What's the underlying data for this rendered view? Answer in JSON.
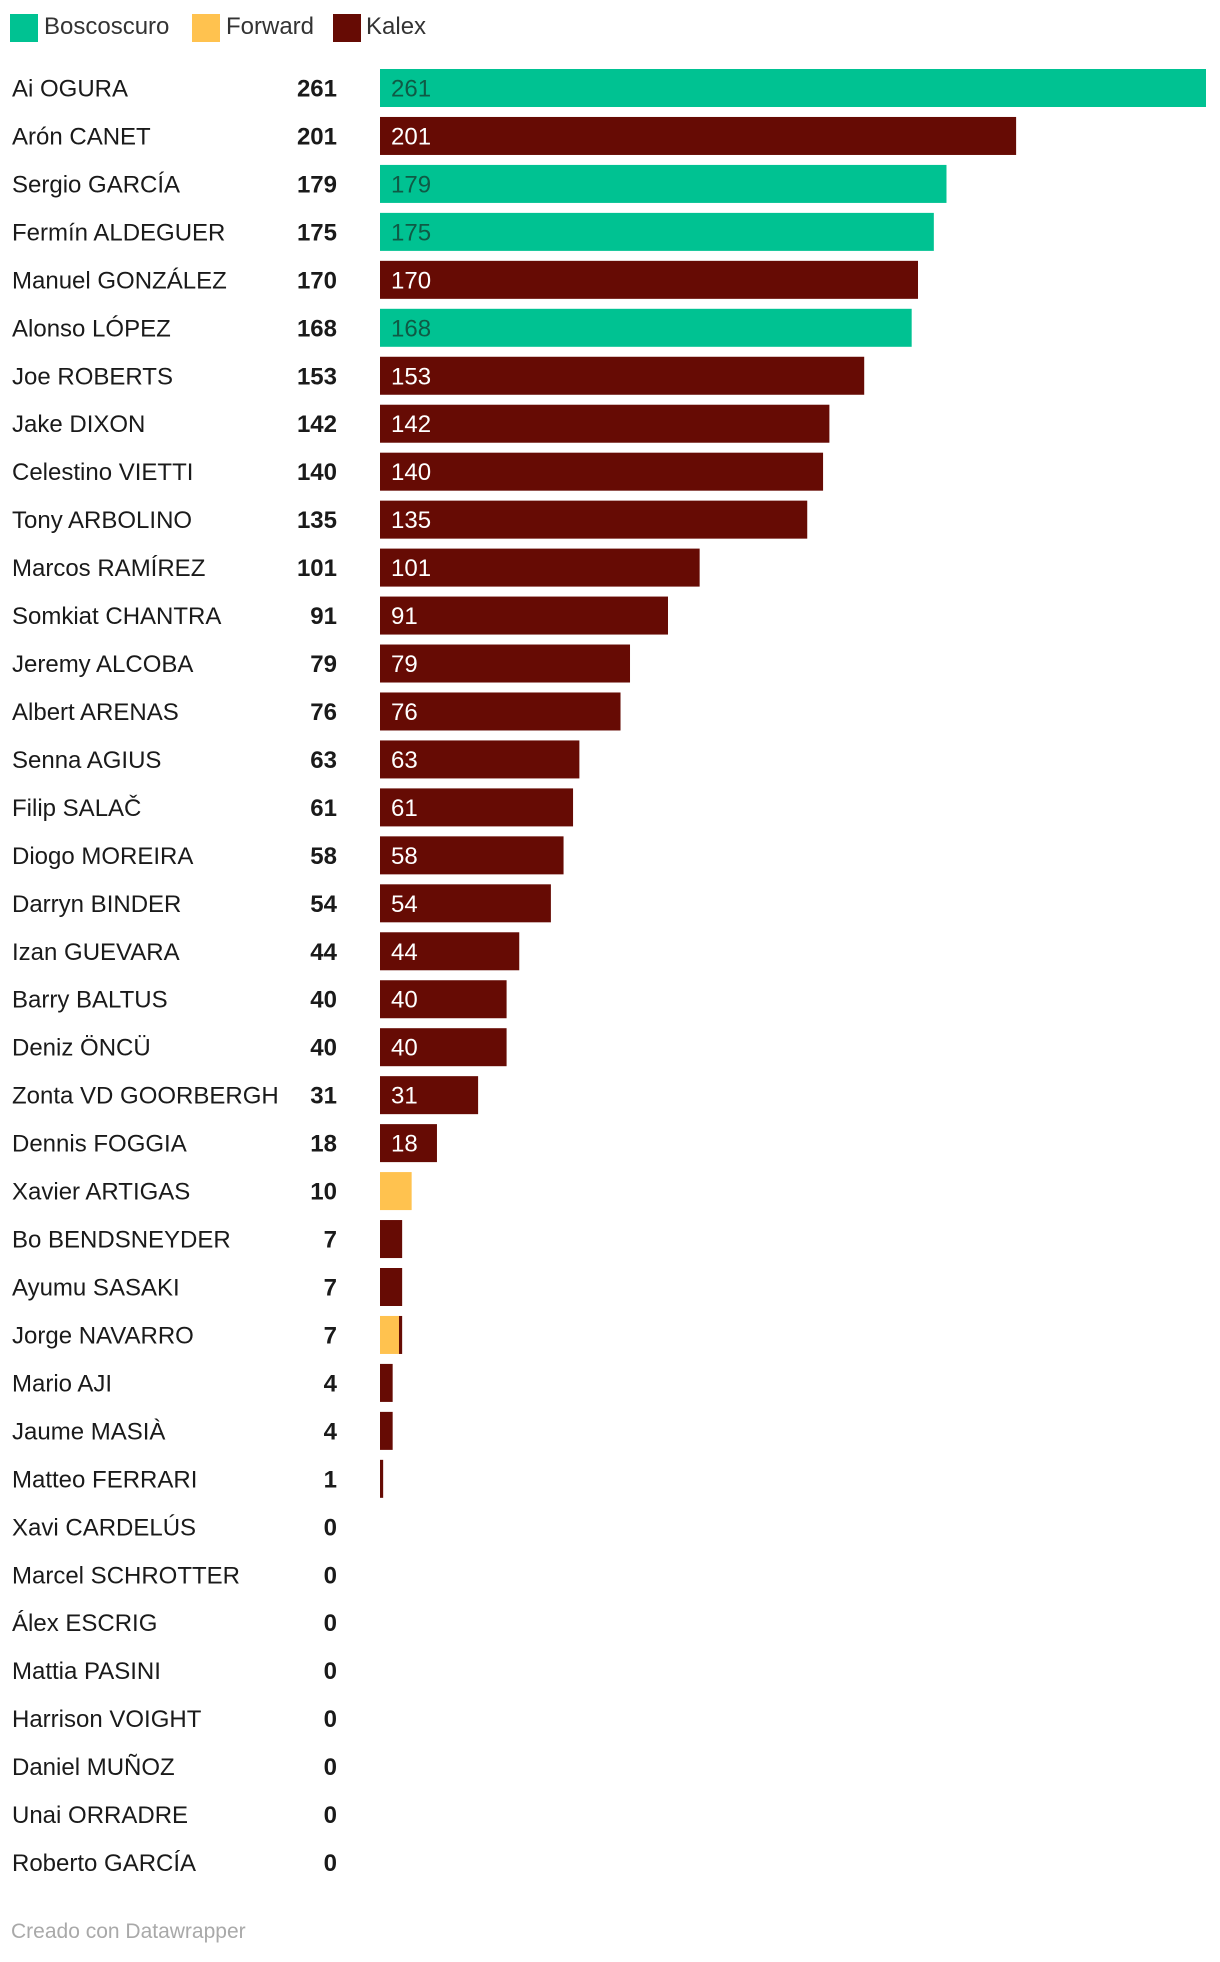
{
  "colors": {
    "Boscoscuro": "#00c292",
    "Forward": "#ffc24f",
    "Kalex": "#660b04"
  },
  "legend": [
    {
      "name": "Boscoscuro",
      "color": "#00c292"
    },
    {
      "name": "Forward",
      "color": "#ffc24f"
    },
    {
      "name": "Kalex",
      "color": "#660b04"
    }
  ],
  "footer": {
    "credit": "Creado con Datawrapper"
  },
  "chart_data": {
    "type": "bar",
    "orientation": "horizontal",
    "stacked": true,
    "title": "",
    "xlim": [
      0,
      261
    ],
    "grid": false,
    "legend_position": "top-left",
    "categories": [
      "Ai OGURA",
      "Arón CANET",
      "Sergio GARCÍA",
      "Fermín ALDEGUER",
      "Manuel GONZÁLEZ",
      "Alonso LÓPEZ",
      "Joe ROBERTS",
      "Jake DIXON",
      "Celestino VIETTI",
      "Tony ARBOLINO",
      "Marcos RAMÍREZ",
      "Somkiat CHANTRA",
      "Jeremy ALCOBA",
      "Albert ARENAS",
      "Senna AGIUS",
      "Filip SALAČ",
      "Diogo MOREIRA",
      "Darryn BINDER",
      "Izan GUEVARA",
      "Barry BALTUS",
      "Deniz ÖNCÜ",
      "Zonta VD GOORBERGH",
      "Dennis FOGGIA",
      "Xavier ARTIGAS",
      "Bo BENDSNEYDER",
      "Ayumu SASAKI",
      "Jorge NAVARRO",
      "Mario AJI",
      "Jaume MASIÀ",
      "Matteo FERRARI",
      "Xavi CARDELÚS",
      "Marcel SCHROTTER",
      "Álex ESCRIG",
      "Mattia PASINI",
      "Harrison VOIGHT",
      "Daniel MUÑOZ",
      "Unai ORRADRE",
      "Roberto GARCÍA"
    ],
    "totals": [
      261,
      201,
      179,
      175,
      170,
      168,
      153,
      142,
      140,
      135,
      101,
      91,
      79,
      76,
      63,
      61,
      58,
      54,
      44,
      40,
      40,
      31,
      18,
      10,
      7,
      7,
      7,
      4,
      4,
      1,
      0,
      0,
      0,
      0,
      0,
      0,
      0,
      0
    ],
    "series": [
      {
        "name": "Boscoscuro",
        "values": [
          261,
          0,
          179,
          175,
          0,
          168,
          0,
          0,
          0,
          0,
          0,
          0,
          0,
          0,
          0,
          0,
          0,
          0,
          0,
          0,
          0,
          0,
          0,
          0,
          0,
          0,
          0,
          0,
          0,
          0,
          0,
          0,
          0,
          0,
          0,
          0,
          0,
          0
        ]
      },
      {
        "name": "Forward",
        "values": [
          0,
          0,
          0,
          0,
          0,
          0,
          0,
          0,
          0,
          0,
          0,
          0,
          0,
          0,
          0,
          0,
          0,
          0,
          0,
          0,
          0,
          0,
          0,
          10,
          0,
          0,
          6,
          0,
          0,
          0,
          0,
          0,
          0,
          0,
          0,
          0,
          0,
          0
        ]
      },
      {
        "name": "Kalex",
        "values": [
          0,
          201,
          0,
          0,
          170,
          0,
          153,
          142,
          140,
          135,
          101,
          91,
          79,
          76,
          63,
          61,
          58,
          54,
          44,
          40,
          40,
          31,
          18,
          0,
          7,
          7,
          1,
          4,
          4,
          1,
          0,
          0,
          0,
          0,
          0,
          0,
          0,
          0
        ]
      }
    ]
  }
}
